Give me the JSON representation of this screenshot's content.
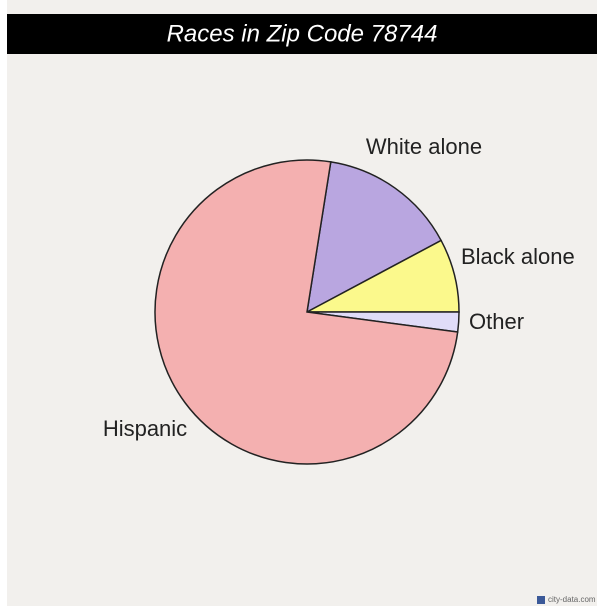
{
  "chart_data": {
    "type": "pie",
    "title": "Races in Zip Code 78744",
    "categories": [
      "White alone",
      "Black alone",
      "Other",
      "Hispanic"
    ],
    "values": [
      14.7,
      7.8,
      2.1,
      75.4
    ],
    "colors": [
      "#b9a6e0",
      "#fbf98c",
      "#e0dcf8",
      "#f4b0b0"
    ],
    "source": "city-data.com"
  }
}
